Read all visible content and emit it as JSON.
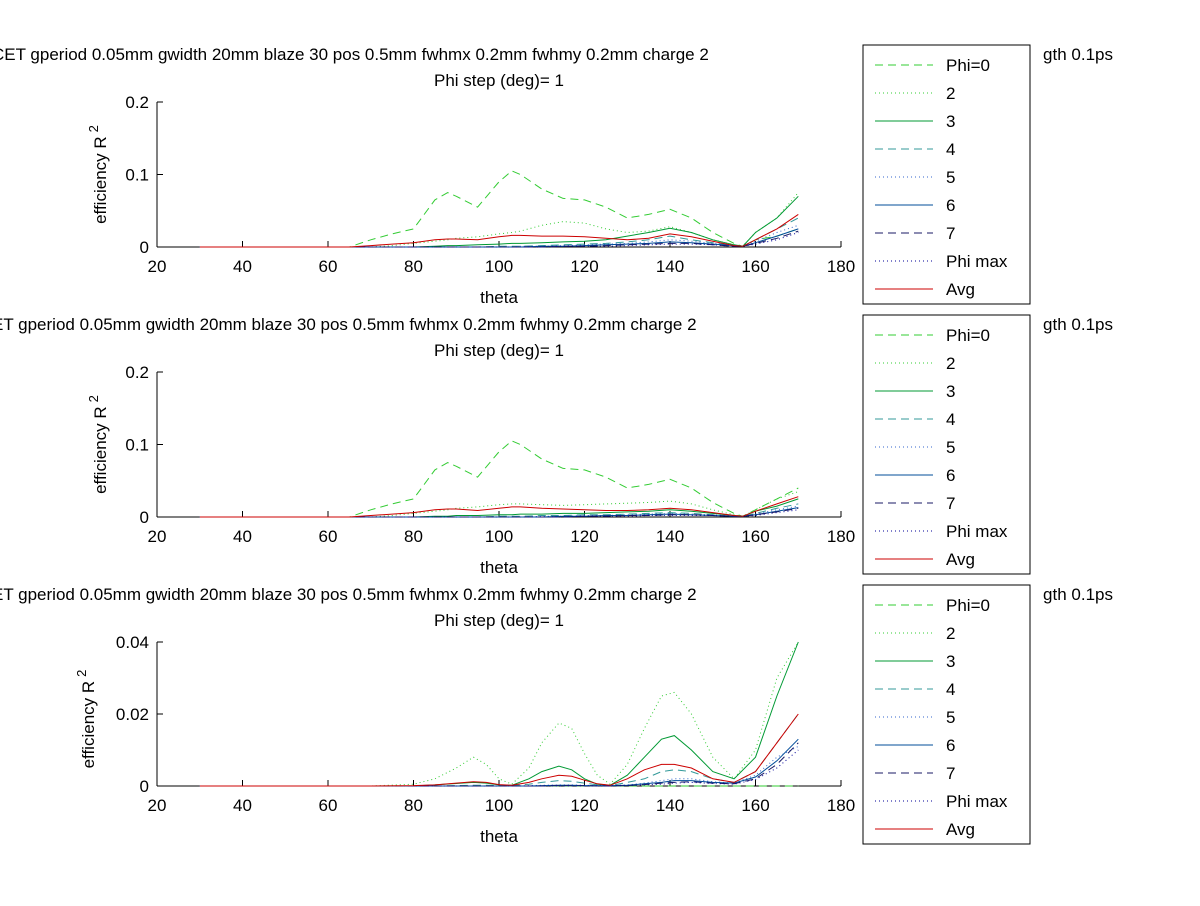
{
  "figure": {
    "background": "#ffffff"
  },
  "legend_entries": [
    {
      "label": "Phi=0",
      "color": "#33cc33",
      "dash": "8,5"
    },
    {
      "label": "2",
      "color": "#33cc33",
      "dash": "1,3"
    },
    {
      "label": "3",
      "color": "#009933",
      "dash": ""
    },
    {
      "label": "4",
      "color": "#339999",
      "dash": "8,5"
    },
    {
      "label": "5",
      "color": "#3366cc",
      "dash": "1,3"
    },
    {
      "label": "6",
      "color": "#004c99",
      "dash": ""
    },
    {
      "label": "7",
      "color": "#1a1a66",
      "dash": "8,5"
    },
    {
      "label": "Phi max",
      "color": "#000099",
      "dash": "1,3"
    },
    {
      "label": "Avg",
      "color": "#cc0000",
      "dash": ""
    }
  ],
  "chart_data": [
    {
      "type": "line",
      "title": "CET gperiod 0.05mm gwidth 20mm blaze 30 pos 0.5mm fwhmx 0.2mm fwhmy 0.2mm charge 2",
      "title_tail": "gth 0.1ps",
      "subtitle": "Phi step (deg)= 1",
      "xlabel": "theta",
      "ylabel": "efficiency R",
      "ylabel_sup": "2",
      "xlim": [
        20,
        180
      ],
      "ylim": [
        0,
        0.2
      ],
      "xticks": [
        "20",
        "40",
        "60",
        "80",
        "100",
        "120",
        "140",
        "160",
        "180"
      ],
      "yticks": [
        "0",
        "0.1",
        "0.2"
      ],
      "x": [
        30,
        40,
        50,
        60,
        65,
        70,
        75,
        80,
        85,
        88,
        90,
        95,
        100,
        103,
        105,
        110,
        115,
        120,
        125,
        130,
        135,
        140,
        145,
        150,
        155,
        157,
        160,
        165,
        170
      ],
      "series": [
        {
          "name": "Phi=0",
          "values": [
            0,
            0,
            0,
            0,
            0,
            0.01,
            0.018,
            0.025,
            0.065,
            0.075,
            0.07,
            0.055,
            0.09,
            0.105,
            0.1,
            0.08,
            0.067,
            0.065,
            0.055,
            0.04,
            0.045,
            0.052,
            0.04,
            0.02,
            0.005,
            0.001,
            0.01,
            0.015,
            0.025
          ]
        },
        {
          "name": "2",
          "values": [
            0,
            0,
            0,
            0,
            0,
            0,
            0.002,
            0.005,
            0.008,
            0.01,
            0.012,
            0.014,
            0.018,
            0.02,
            0.022,
            0.03,
            0.035,
            0.033,
            0.025,
            0.02,
            0.022,
            0.028,
            0.02,
            0.01,
            0.003,
            0.001,
            0.02,
            0.04,
            0.075
          ]
        },
        {
          "name": "3",
          "values": [
            0,
            0,
            0,
            0,
            0,
            0,
            0,
            0,
            0.001,
            0.002,
            0.002,
            0.003,
            0.004,
            0.005,
            0.005,
            0.006,
            0.007,
            0.008,
            0.01,
            0.015,
            0.02,
            0.026,
            0.02,
            0.01,
            0.003,
            0.001,
            0.02,
            0.04,
            0.07
          ]
        },
        {
          "name": "4",
          "values": [
            0,
            0,
            0,
            0,
            0,
            0,
            0,
            0,
            0,
            0,
            0,
            0,
            0.001,
            0.001,
            0.001,
            0.002,
            0.003,
            0.004,
            0.005,
            0.007,
            0.01,
            0.015,
            0.01,
            0.006,
            0.002,
            0.001,
            0.01,
            0.025,
            0.04
          ]
        },
        {
          "name": "5",
          "values": [
            0,
            0,
            0,
            0,
            0,
            0,
            0,
            0,
            0,
            0,
            0,
            0,
            0,
            0,
            0.001,
            0.001,
            0.002,
            0.003,
            0.004,
            0.005,
            0.007,
            0.01,
            0.008,
            0.005,
            0.002,
            0.001,
            0.008,
            0.02,
            0.03
          ]
        },
        {
          "name": "6",
          "values": [
            0,
            0,
            0,
            0,
            0,
            0,
            0,
            0,
            0,
            0,
            0,
            0,
            0,
            0,
            0,
            0.001,
            0.001,
            0.002,
            0.003,
            0.004,
            0.005,
            0.007,
            0.006,
            0.004,
            0.002,
            0.001,
            0.006,
            0.015,
            0.025
          ]
        },
        {
          "name": "7",
          "values": [
            0,
            0,
            0,
            0,
            0,
            0,
            0,
            0,
            0,
            0,
            0,
            0,
            0,
            0,
            0,
            0,
            0.001,
            0.001,
            0.002,
            0.003,
            0.004,
            0.005,
            0.005,
            0.003,
            0.001,
            0.001,
            0.005,
            0.012,
            0.022
          ]
        },
        {
          "name": "Phi max",
          "values": [
            0,
            0,
            0,
            0,
            0,
            0,
            0,
            0,
            0,
            0,
            0,
            0,
            0,
            0,
            0,
            0,
            0.001,
            0.001,
            0.001,
            0.002,
            0.003,
            0.004,
            0.004,
            0.003,
            0.001,
            0.001,
            0.004,
            0.01,
            0.02
          ]
        },
        {
          "name": "Avg",
          "values": [
            0,
            0,
            0,
            0,
            0,
            0.002,
            0.004,
            0.006,
            0.01,
            0.011,
            0.011,
            0.01,
            0.014,
            0.016,
            0.016,
            0.015,
            0.015,
            0.014,
            0.012,
            0.01,
            0.012,
            0.018,
            0.014,
            0.008,
            0.002,
            0.001,
            0.01,
            0.025,
            0.045
          ]
        }
      ]
    },
    {
      "type": "line",
      "title": "ET gperiod 0.05mm gwidth 20mm blaze 30 pos 0.5mm fwhmx 0.2mm fwhmy 0.2mm charge 2",
      "title_tail": "gth 0.1ps",
      "subtitle": "Phi step (deg)= 1",
      "xlabel": "theta",
      "ylabel": "efficiency R",
      "ylabel_sup": "2",
      "xlim": [
        20,
        180
      ],
      "ylim": [
        0,
        0.2
      ],
      "xticks": [
        "20",
        "40",
        "60",
        "80",
        "100",
        "120",
        "140",
        "160",
        "180"
      ],
      "yticks": [
        "0",
        "0.1",
        "0.2"
      ],
      "x": [
        30,
        40,
        50,
        60,
        65,
        70,
        75,
        80,
        85,
        88,
        90,
        95,
        100,
        103,
        105,
        110,
        115,
        120,
        125,
        130,
        135,
        140,
        145,
        150,
        155,
        157,
        160,
        165,
        170
      ],
      "series": [
        {
          "name": "Phi=0",
          "values": [
            0,
            0,
            0,
            0,
            0,
            0.01,
            0.018,
            0.025,
            0.065,
            0.075,
            0.07,
            0.055,
            0.09,
            0.105,
            0.1,
            0.08,
            0.067,
            0.065,
            0.055,
            0.04,
            0.045,
            0.052,
            0.04,
            0.02,
            0.005,
            0.001,
            0.01,
            0.025,
            0.04
          ]
        },
        {
          "name": "2",
          "values": [
            0,
            0,
            0,
            0,
            0,
            0,
            0.002,
            0.005,
            0.008,
            0.01,
            0.012,
            0.014,
            0.017,
            0.018,
            0.018,
            0.017,
            0.016,
            0.017,
            0.018,
            0.019,
            0.02,
            0.022,
            0.018,
            0.01,
            0.003,
            0.001,
            0.01,
            0.025,
            0.035
          ]
        },
        {
          "name": "3",
          "values": [
            0,
            0,
            0,
            0,
            0,
            0,
            0,
            0,
            0.001,
            0.001,
            0.002,
            0.002,
            0.003,
            0.003,
            0.004,
            0.004,
            0.005,
            0.005,
            0.006,
            0.007,
            0.008,
            0.01,
            0.008,
            0.005,
            0.002,
            0.001,
            0.008,
            0.015,
            0.025
          ]
        },
        {
          "name": "4",
          "values": [
            0,
            0,
            0,
            0,
            0,
            0,
            0,
            0,
            0,
            0,
            0,
            0,
            0.001,
            0.001,
            0.001,
            0.002,
            0.002,
            0.003,
            0.003,
            0.004,
            0.005,
            0.006,
            0.005,
            0.003,
            0.001,
            0.001,
            0.005,
            0.012,
            0.018
          ]
        },
        {
          "name": "5",
          "values": [
            0,
            0,
            0,
            0,
            0,
            0,
            0,
            0,
            0,
            0,
            0,
            0,
            0,
            0,
            0,
            0.001,
            0.001,
            0.002,
            0.002,
            0.003,
            0.004,
            0.005,
            0.004,
            0.003,
            0.001,
            0.001,
            0.004,
            0.01,
            0.015
          ]
        },
        {
          "name": "6",
          "values": [
            0,
            0,
            0,
            0,
            0,
            0,
            0,
            0,
            0,
            0,
            0,
            0,
            0,
            0,
            0,
            0,
            0.001,
            0.001,
            0.002,
            0.002,
            0.003,
            0.004,
            0.003,
            0.002,
            0.001,
            0.001,
            0.003,
            0.008,
            0.013
          ]
        },
        {
          "name": "7",
          "values": [
            0,
            0,
            0,
            0,
            0,
            0,
            0,
            0,
            0,
            0,
            0,
            0,
            0,
            0,
            0,
            0,
            0,
            0.001,
            0.001,
            0.002,
            0.002,
            0.003,
            0.003,
            0.002,
            0.001,
            0.001,
            0.003,
            0.007,
            0.012
          ]
        },
        {
          "name": "Phi max",
          "values": [
            0,
            0,
            0,
            0,
            0,
            0,
            0,
            0,
            0,
            0,
            0,
            0,
            0,
            0,
            0,
            0,
            0,
            0.001,
            0.001,
            0.001,
            0.002,
            0.002,
            0.002,
            0.002,
            0.001,
            0.001,
            0.002,
            0.006,
            0.01
          ]
        },
        {
          "name": "Avg",
          "values": [
            0,
            0,
            0,
            0,
            0,
            0.002,
            0.004,
            0.006,
            0.01,
            0.011,
            0.011,
            0.009,
            0.012,
            0.014,
            0.014,
            0.012,
            0.011,
            0.01,
            0.009,
            0.009,
            0.01,
            0.012,
            0.01,
            0.006,
            0.002,
            0.001,
            0.008,
            0.018,
            0.028
          ]
        }
      ]
    },
    {
      "type": "line",
      "title": "ET gperiod 0.05mm gwidth 20mm blaze 30 pos 0.5mm fwhmx 0.2mm fwhmy 0.2mm charge 2",
      "title_tail": "gth 0.1ps",
      "subtitle": "Phi step (deg)= 1",
      "xlabel": "theta",
      "ylabel": "efficiency R",
      "ylabel_sup": "2",
      "xlim": [
        20,
        180
      ],
      "ylim": [
        0,
        0.04
      ],
      "xticks": [
        "20",
        "40",
        "60",
        "80",
        "100",
        "120",
        "140",
        "160",
        "180"
      ],
      "yticks": [
        "0",
        "0.02",
        "0.04"
      ],
      "x": [
        30,
        40,
        50,
        60,
        70,
        80,
        85,
        90,
        94,
        97,
        100,
        103,
        107,
        110,
        114,
        117,
        120,
        123,
        126,
        130,
        134,
        138,
        141,
        145,
        150,
        155,
        160,
        165,
        170
      ],
      "series": [
        {
          "name": "Phi=0",
          "values": [
            0,
            0,
            0,
            0,
            0,
            0,
            0,
            0,
            0,
            0,
            0,
            0,
            0,
            0,
            0,
            0,
            0,
            0,
            0,
            0,
            0,
            0,
            0,
            0,
            0,
            0,
            0,
            0,
            0
          ]
        },
        {
          "name": "2",
          "values": [
            0,
            0,
            0,
            0,
            0,
            0.0005,
            0.002,
            0.005,
            0.008,
            0.006,
            0.002,
            0.0005,
            0.005,
            0.012,
            0.0175,
            0.016,
            0.009,
            0.003,
            0.0005,
            0.006,
            0.016,
            0.025,
            0.026,
            0.02,
            0.008,
            0.002,
            0.01,
            0.03,
            0.04
          ]
        },
        {
          "name": "3",
          "values": [
            0,
            0,
            0,
            0,
            0,
            0,
            0.0003,
            0.0007,
            0.001,
            0.0008,
            0.0003,
            0.0002,
            0.002,
            0.004,
            0.0055,
            0.0045,
            0.002,
            0.0005,
            0.0002,
            0.003,
            0.008,
            0.013,
            0.014,
            0.01,
            0.004,
            0.002,
            0.008,
            0.025,
            0.04
          ]
        },
        {
          "name": "4",
          "values": [
            0,
            0,
            0,
            0,
            0,
            0,
            0,
            0.0001,
            0.0002,
            0.0002,
            0.0001,
            0.0001,
            0.0005,
            0.001,
            0.0015,
            0.0013,
            0.0008,
            0.0003,
            0.0001,
            0.001,
            0.002,
            0.004,
            0.0045,
            0.004,
            0.002,
            0.001,
            0.004,
            0.012,
            0.02
          ]
        },
        {
          "name": "5",
          "values": [
            0,
            0,
            0,
            0,
            0,
            0,
            0,
            0,
            0,
            0,
            0,
            0,
            0.0001,
            0.0002,
            0.0003,
            0.0003,
            0.0002,
            0.0001,
            0.0001,
            0.0003,
            0.0008,
            0.0015,
            0.002,
            0.002,
            0.0012,
            0.0008,
            0.003,
            0.008,
            0.011
          ]
        },
        {
          "name": "6",
          "values": [
            0,
            0,
            0,
            0,
            0,
            0,
            0,
            0,
            0,
            0,
            0,
            0,
            0,
            0.0001,
            0.0002,
            0.0002,
            0.0001,
            0.0001,
            0.0001,
            0.0002,
            0.0006,
            0.001,
            0.0015,
            0.0015,
            0.001,
            0.0008,
            0.0025,
            0.007,
            0.013
          ]
        },
        {
          "name": "7",
          "values": [
            0,
            0,
            0,
            0,
            0,
            0,
            0,
            0,
            0,
            0,
            0,
            0,
            0,
            0,
            0.0001,
            0.0001,
            0.0001,
            0,
            0,
            0.0001,
            0.0004,
            0.0008,
            0.001,
            0.0012,
            0.0008,
            0.0006,
            0.002,
            0.006,
            0.012
          ]
        },
        {
          "name": "Phi max",
          "values": [
            0,
            0,
            0,
            0,
            0,
            0,
            0,
            0,
            0,
            0,
            0,
            0,
            0,
            0,
            0,
            0,
            0,
            0,
            0,
            0.0001,
            0.0003,
            0.0005,
            0.0008,
            0.001,
            0.0007,
            0.0005,
            0.0018,
            0.005,
            0.01
          ]
        },
        {
          "name": "Avg",
          "values": [
            0,
            0,
            0,
            0,
            0,
            0.0001,
            0.0003,
            0.0008,
            0.0012,
            0.001,
            0.0004,
            0.0002,
            0.001,
            0.002,
            0.003,
            0.0027,
            0.0016,
            0.0006,
            0.0002,
            0.002,
            0.0045,
            0.006,
            0.006,
            0.005,
            0.002,
            0.001,
            0.004,
            0.012,
            0.02
          ]
        }
      ]
    }
  ]
}
